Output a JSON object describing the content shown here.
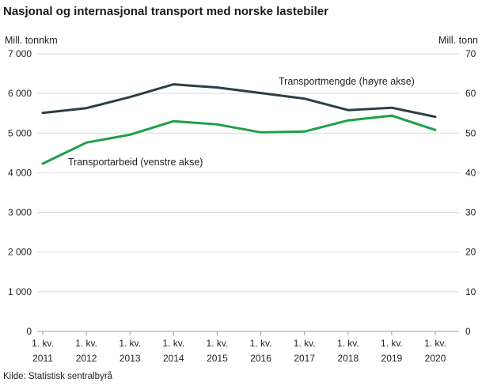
{
  "title": "Nasjonal og internasjonal transport med norske lastebiler",
  "source": "Kilde: Statistisk sentralbyrå",
  "chart_data": {
    "type": "line",
    "title": "Nasjonal og internasjonal transport med norske lastebiler",
    "xlabel": "",
    "ylabel_left": "Mill. tonnkm",
    "ylabel_right": "Mill. tonn",
    "ylim_left": [
      0,
      7000
    ],
    "ylim_right": [
      0,
      70
    ],
    "yticks_left": [
      "0",
      "1 000",
      "2 000",
      "3 000",
      "4 000",
      "5 000",
      "6 000",
      "7 000"
    ],
    "yticks_right": [
      "0",
      "10",
      "20",
      "30",
      "40",
      "50",
      "60",
      "70"
    ],
    "grid": true,
    "categories": [
      [
        "1. kv.",
        "2011"
      ],
      [
        "1. kv.",
        "2012"
      ],
      [
        "1. kv.",
        "2013"
      ],
      [
        "1. kv.",
        "2014"
      ],
      [
        "1. kv.",
        "2015"
      ],
      [
        "1. kv.",
        "2016"
      ],
      [
        "1. kv.",
        "2017"
      ],
      [
        "1. kv.",
        "2018"
      ],
      [
        "1. kv.",
        "2019"
      ],
      [
        "1. kv.",
        "2020"
      ]
    ],
    "series": [
      {
        "name": "Transportmengde  (høyre akse)",
        "axis": "right",
        "color": "#2b3f45",
        "values": [
          55.1,
          56.3,
          59.1,
          62.3,
          61.5,
          60.1,
          58.7,
          55.8,
          56.4,
          54.1
        ]
      },
      {
        "name": "Transportarbeid  (venstre akse)",
        "axis": "left",
        "color": "#1f9e4a",
        "values": [
          4230,
          4760,
          4960,
          5300,
          5220,
          5020,
          5040,
          5320,
          5440,
          5080
        ]
      }
    ]
  }
}
